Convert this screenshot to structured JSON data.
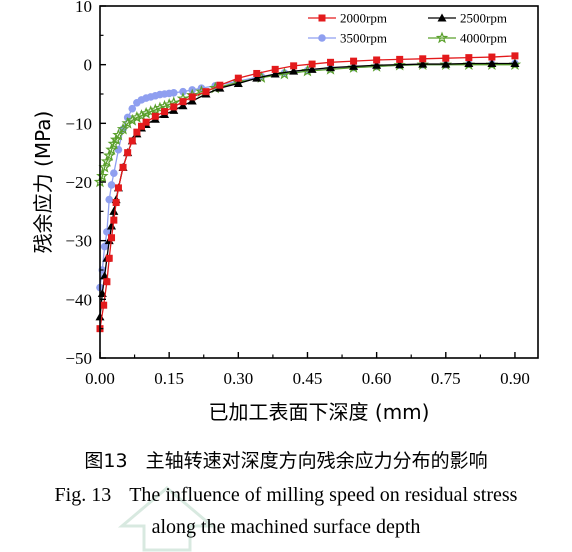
{
  "chart_data": {
    "type": "line",
    "xlabel": "已加工表面下深度 (mm)",
    "ylabel": "残余应力 (MPa)",
    "xlim": [
      0,
      0.95
    ],
    "ylim": [
      -50,
      10
    ],
    "xticks": [
      "0.00",
      "0.15",
      "0.30",
      "0.45",
      "0.60",
      "0.75",
      "0.90"
    ],
    "yticks": [
      "10",
      "0",
      "−10",
      "−20",
      "−30",
      "−40",
      "−50"
    ],
    "grid": false,
    "legend_position": "top-right",
    "series": [
      {
        "name": "2000rpm",
        "color": "#e31a1c",
        "marker": "square",
        "x": [
          0.0,
          0.008,
          0.015,
          0.02,
          0.025,
          0.03,
          0.035,
          0.04,
          0.05,
          0.06,
          0.07,
          0.08,
          0.09,
          0.1,
          0.12,
          0.14,
          0.16,
          0.18,
          0.2,
          0.23,
          0.26,
          0.3,
          0.34,
          0.38,
          0.42,
          0.46,
          0.5,
          0.55,
          0.6,
          0.65,
          0.7,
          0.75,
          0.8,
          0.85,
          0.9
        ],
        "y": [
          -45,
          -41,
          -37,
          -33,
          -29.5,
          -26.5,
          -23.5,
          -21,
          -17.5,
          -15,
          -13,
          -11.5,
          -10.5,
          -9.8,
          -8.8,
          -8,
          -7.2,
          -6.3,
          -5.5,
          -4.6,
          -3.5,
          -2.3,
          -1.5,
          -0.8,
          -0.2,
          0.1,
          0.4,
          0.6,
          0.8,
          0.9,
          1.0,
          1.1,
          1.2,
          1.3,
          1.5
        ]
      },
      {
        "name": "2500rpm",
        "color": "#000000",
        "marker": "triangle",
        "x": [
          0.0,
          0.005,
          0.01,
          0.015,
          0.02,
          0.025,
          0.03,
          0.035,
          0.04,
          0.05,
          0.06,
          0.07,
          0.08,
          0.09,
          0.1,
          0.12,
          0.14,
          0.16,
          0.18,
          0.2,
          0.23,
          0.26,
          0.3,
          0.34,
          0.38,
          0.42,
          0.46,
          0.5,
          0.55,
          0.6,
          0.65,
          0.7,
          0.75,
          0.8,
          0.85,
          0.9
        ],
        "y": [
          -43,
          -39,
          -36,
          -33,
          -30,
          -27.5,
          -25,
          -23,
          -21,
          -17.5,
          -15,
          -13,
          -11.8,
          -10.8,
          -10.2,
          -9.3,
          -8.5,
          -7.8,
          -7,
          -6.2,
          -5,
          -4,
          -3.2,
          -2.3,
          -1.6,
          -1.1,
          -0.8,
          -0.5,
          -0.3,
          -0.1,
          0.0,
          0.1,
          0.1,
          0.2,
          0.2,
          0.2
        ]
      },
      {
        "name": "3500rpm",
        "color": "#8f9ff0",
        "marker": "circle",
        "x": [
          0.0,
          0.005,
          0.01,
          0.015,
          0.02,
          0.025,
          0.03,
          0.04,
          0.05,
          0.06,
          0.07,
          0.08,
          0.09,
          0.1,
          0.11,
          0.12,
          0.13,
          0.14,
          0.15,
          0.16,
          0.18,
          0.2,
          0.22,
          0.25,
          0.3,
          0.35,
          0.4,
          0.45,
          0.5,
          0.55,
          0.6,
          0.65,
          0.7,
          0.75,
          0.8,
          0.85,
          0.9
        ],
        "y": [
          -38,
          -35,
          -31,
          -28.5,
          -23,
          -20.5,
          -18.5,
          -14.5,
          -11,
          -9,
          -7.5,
          -6.5,
          -6,
          -5.7,
          -5.5,
          -5.3,
          -5.1,
          -5,
          -4.9,
          -4.8,
          -4.6,
          -4.3,
          -4,
          -3.6,
          -2.8,
          -2,
          -1.4,
          -1,
          -0.7,
          -0.5,
          -0.3,
          -0.1,
          0.0,
          0.0,
          0.1,
          0.1,
          0.2
        ]
      },
      {
        "name": "4000rpm",
        "color": "#5aa02c",
        "marker": "star",
        "x": [
          0.0,
          0.005,
          0.01,
          0.015,
          0.02,
          0.025,
          0.03,
          0.035,
          0.04,
          0.05,
          0.06,
          0.07,
          0.08,
          0.09,
          0.1,
          0.11,
          0.12,
          0.13,
          0.14,
          0.15,
          0.16,
          0.18,
          0.2,
          0.22,
          0.25,
          0.3,
          0.35,
          0.4,
          0.45,
          0.5,
          0.55,
          0.6,
          0.65,
          0.7,
          0.75,
          0.8,
          0.85,
          0.9
        ],
        "y": [
          -20,
          -19,
          -17.5,
          -16.5,
          -15.5,
          -14.5,
          -13.5,
          -12.8,
          -12,
          -11,
          -10,
          -9.5,
          -9,
          -8.7,
          -8.3,
          -8,
          -7.7,
          -7.4,
          -7.1,
          -6.8,
          -6.5,
          -5.8,
          -5.2,
          -4.6,
          -4,
          -3,
          -2.2,
          -1.6,
          -1.1,
          -0.8,
          -0.5,
          -0.3,
          -0.1,
          0.0,
          0.0,
          0.0,
          0.0,
          0.0
        ]
      }
    ]
  },
  "caption": {
    "cn_label": "图13",
    "cn_text": "主轴转速对深度方向残余应力分布的影响",
    "en_label": "Fig. 13",
    "en_line1": "The influence of milling speed on residual stress",
    "en_line2": "along the machined surface depth"
  }
}
